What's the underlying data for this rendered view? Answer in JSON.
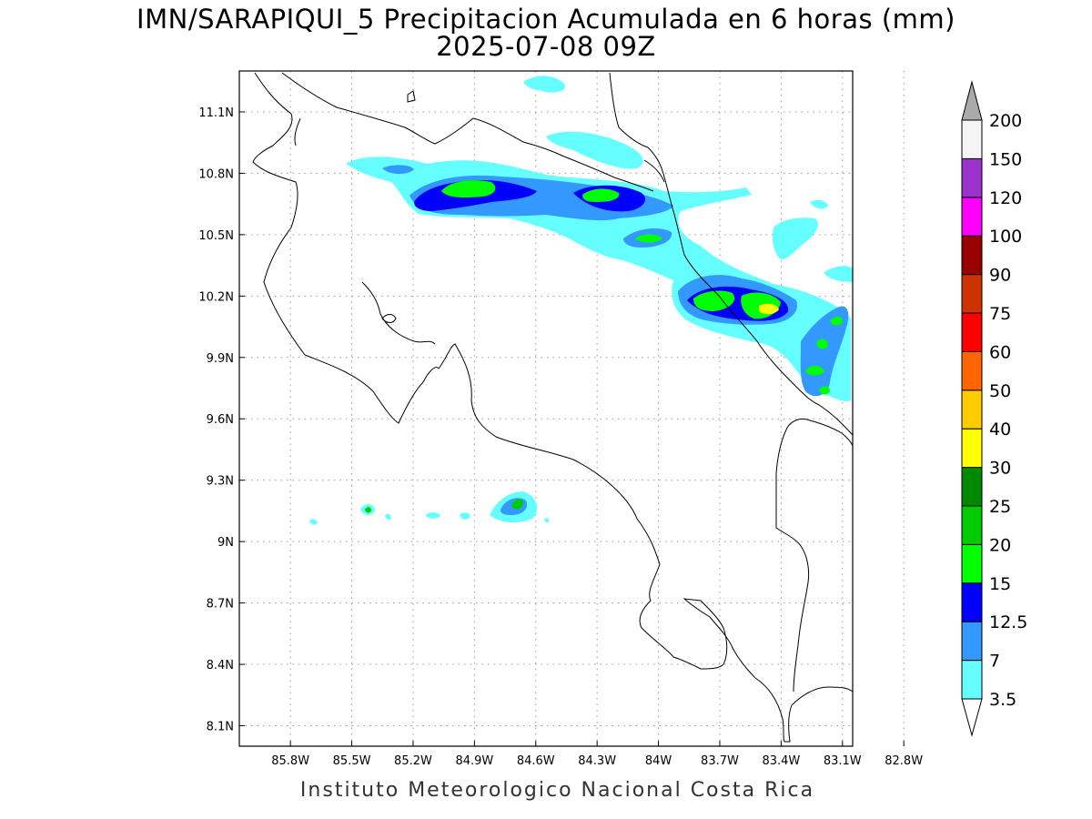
{
  "title": {
    "line1": "IMN/SARAPIQUI_5 Precipitacion Acumulada en 6 horas (mm)",
    "line2": "2025-07-08 09Z"
  },
  "credit": "Instituto Meteorologico Nacional Costa Rica",
  "map": {
    "lon_range": [
      -86.05,
      -83.05
    ],
    "lat_range": [
      8.0,
      11.3
    ],
    "lon_ticks": [
      {
        "value": -85.8,
        "label": "85.8W"
      },
      {
        "value": -85.5,
        "label": "85.5W"
      },
      {
        "value": -85.2,
        "label": "85.2W"
      },
      {
        "value": -84.9,
        "label": "84.9W"
      },
      {
        "value": -84.6,
        "label": "84.6W"
      },
      {
        "value": -84.3,
        "label": "84.3W"
      },
      {
        "value": -84.0,
        "label": "84W"
      },
      {
        "value": -83.7,
        "label": "83.7W"
      },
      {
        "value": -83.4,
        "label": "83.4W"
      },
      {
        "value": -83.1,
        "label": "83.1W"
      },
      {
        "value": -82.8,
        "label": "82.8W"
      }
    ],
    "lat_ticks": [
      {
        "value": 11.1,
        "label": "11.1N"
      },
      {
        "value": 10.8,
        "label": "10.8N"
      },
      {
        "value": 10.5,
        "label": "10.5N"
      },
      {
        "value": 10.2,
        "label": "10.2N"
      },
      {
        "value": 9.9,
        "label": "9.9N"
      },
      {
        "value": 9.6,
        "label": "9.6N"
      },
      {
        "value": 9.3,
        "label": "9.3N"
      },
      {
        "value": 9.0,
        "label": "9N"
      },
      {
        "value": 8.7,
        "label": "8.7N"
      },
      {
        "value": 8.4,
        "label": "8.4N"
      },
      {
        "value": 8.1,
        "label": "8.1N"
      }
    ],
    "grid": "dotted"
  },
  "colorbar": {
    "levels": [
      "3.5",
      "7",
      "12.5",
      "15",
      "20",
      "25",
      "30",
      "40",
      "50",
      "60",
      "75",
      "90",
      "100",
      "120",
      "150",
      "200"
    ],
    "colors": [
      "#66ffff",
      "#3399ff",
      "#0000ff",
      "#00ff00",
      "#00cc00",
      "#008800",
      "#ffff00",
      "#ffcc00",
      "#ff6600",
      "#ff0000",
      "#cc3300",
      "#990000",
      "#ff00ff",
      "#9933cc",
      "#f5f5f5",
      "#aaaaaa"
    ],
    "lower_arrow_color": "#ffffff",
    "upper_arrow_color": "#aaaaaa"
  }
}
